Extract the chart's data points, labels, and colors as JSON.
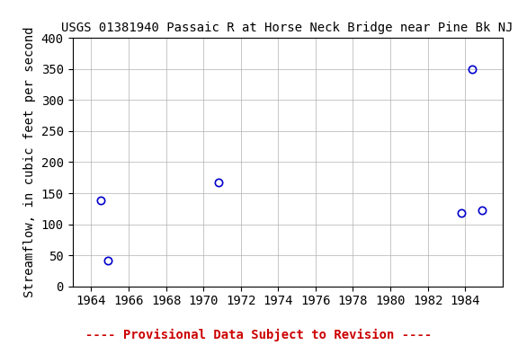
{
  "title": "USGS 01381940 Passaic R at Horse Neck Bridge near Pine Bk NJ",
  "ylabel": "Streamflow, in cubic feet per second",
  "x_data": [
    1964.5,
    1964.9,
    1970.8,
    1983.8,
    1984.4,
    1984.9
  ],
  "y_data": [
    138,
    41,
    168,
    118,
    350,
    122
  ],
  "xlim": [
    1963,
    1986
  ],
  "ylim": [
    0,
    400
  ],
  "xticks": [
    1964,
    1966,
    1968,
    1970,
    1972,
    1974,
    1976,
    1978,
    1980,
    1982,
    1984
  ],
  "yticks": [
    0,
    50,
    100,
    150,
    200,
    250,
    300,
    350,
    400
  ],
  "marker_color": "#0000cc",
  "marker_size": 6,
  "marker_linewidth": 1.2,
  "grid_color": "#b0b0b0",
  "background_color": "#ffffff",
  "title_fontsize": 10,
  "label_fontsize": 10,
  "tick_fontsize": 10,
  "footer_text": "---- Provisional Data Subject to Revision ----",
  "footer_color": "#cc0000",
  "footer_fontsize": 10
}
